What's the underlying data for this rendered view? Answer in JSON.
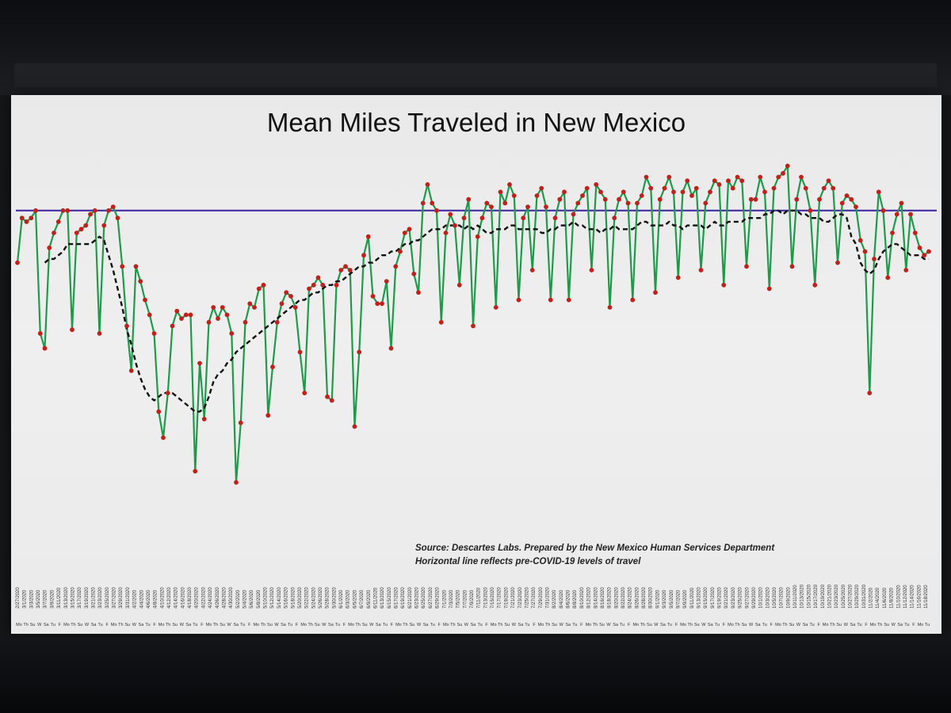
{
  "chart_data": {
    "type": "line",
    "title": "Mean Miles Traveled in New Mexico",
    "x_labels": [
      "2/27/2020",
      "3/1/2020",
      "3/3/2020",
      "3/5/2020",
      "3/7/2020",
      "3/9/2020",
      "3/11/2020",
      "3/13/2020",
      "3/15/2020",
      "3/17/2020",
      "3/19/2020",
      "3/21/2020",
      "3/23/2020",
      "3/25/2020",
      "3/27/2020",
      "3/29/2020",
      "3/31/2020",
      "4/2/2020",
      "4/4/2020",
      "4/6/2020",
      "4/8/2020",
      "4/10/2020",
      "4/12/2020",
      "4/14/2020",
      "4/16/2020",
      "4/18/2020",
      "4/20/2020",
      "4/22/2020",
      "4/24/2020",
      "4/26/2020",
      "4/28/2020",
      "4/30/2020",
      "5/2/2020",
      "5/4/2020",
      "5/6/2020",
      "5/8/2020",
      "5/10/2020",
      "5/12/2020",
      "5/14/2020",
      "5/16/2020",
      "5/18/2020",
      "5/20/2020",
      "5/22/2020",
      "5/24/2020",
      "5/26/2020",
      "5/28/2020",
      "5/30/2020",
      "6/1/2020",
      "6/3/2020",
      "6/5/2020",
      "6/7/2020",
      "6/9/2020",
      "6/11/2020",
      "6/13/2020",
      "6/15/2020",
      "6/17/2020",
      "6/19/2020",
      "6/21/2020",
      "6/23/2020",
      "6/25/2020",
      "6/27/2020",
      "6/29/2020",
      "7/1/2020",
      "7/3/2020",
      "7/5/2020",
      "7/7/2020",
      "7/9/2020",
      "7/11/2020",
      "7/13/2020",
      "7/15/2020",
      "7/17/2020",
      "7/19/2020",
      "7/21/2020",
      "7/23/2020",
      "7/25/2020",
      "7/27/2020",
      "7/29/2020",
      "7/31/2020",
      "8/2/2020",
      "8/4/2020",
      "8/6/2020",
      "8/8/2020",
      "8/10/2020",
      "8/12/2020",
      "8/14/2020",
      "8/16/2020",
      "8/18/2020",
      "8/20/2020",
      "8/22/2020",
      "8/24/2020",
      "8/26/2020",
      "8/28/2020",
      "8/30/2020",
      "9/1/2020",
      "9/3/2020",
      "9/5/2020",
      "9/7/2020",
      "9/9/2020",
      "9/11/2020",
      "9/13/2020",
      "9/15/2020",
      "9/17/2020",
      "9/19/2020",
      "9/21/2020",
      "9/23/2020",
      "9/25/2020",
      "9/27/2020",
      "9/29/2020",
      "10/1/2020",
      "10/3/2020",
      "10/5/2020",
      "10/7/2020",
      "10/9/2020",
      "10/11/2020",
      "10/13/2020",
      "10/15/2020",
      "10/17/2020",
      "10/19/2020",
      "10/21/2020",
      "10/23/2020",
      "10/25/2020",
      "10/27/2020",
      "10/29/2020",
      "10/31/2020",
      "11/2/2020",
      "11/4/2020",
      "11/6/2020",
      "11/8/2020",
      "11/10/2020",
      "11/12/2020",
      "11/14/2020",
      "11/16/2020",
      "11/18/2020"
    ],
    "weekday_labels": [
      "Mo",
      "Th",
      "Su",
      "W",
      "Sa",
      "Tu",
      "F",
      "Mo",
      "Th",
      "Su",
      "W",
      "Sa",
      "Tu",
      "F",
      "Mo",
      "Th",
      "Su",
      "W",
      "Sa",
      "Tu",
      "F",
      "Mo",
      "Th",
      "Su",
      "W",
      "Sa",
      "Tu",
      "F",
      "Mo",
      "Th",
      "Su",
      "W",
      "Sa",
      "Tu",
      "F",
      "Mo",
      "Th",
      "Su",
      "W",
      "Sa",
      "Tu",
      "F",
      "Mo",
      "Th",
      "Su",
      "W",
      "Sa",
      "Tu",
      "F",
      "Mo",
      "Th",
      "Su",
      "W",
      "Sa",
      "Tu",
      "F",
      "Mo",
      "Th",
      "Su",
      "W",
      "Sa",
      "Tu",
      "F",
      "Mo",
      "Th",
      "Su",
      "W",
      "Sa",
      "Tu",
      "F",
      "Mo",
      "Th",
      "Su",
      "W",
      "Sa",
      "Tu",
      "F",
      "Mo",
      "Th",
      "Su",
      "W",
      "Sa",
      "Tu",
      "F",
      "Mo",
      "Th",
      "Su",
      "W",
      "Sa",
      "Tu",
      "F",
      "Mo",
      "Th",
      "Su",
      "W",
      "Sa",
      "Tu",
      "F",
      "Mo",
      "Th",
      "Su",
      "W",
      "Sa",
      "Tu",
      "F",
      "Mo",
      "Th",
      "Su",
      "W",
      "Sa",
      "Tu",
      "F",
      "Mo",
      "Th",
      "Su",
      "W",
      "Sa",
      "Tu",
      "F",
      "Mo",
      "Th",
      "Su",
      "W",
      "Sa",
      "Tu",
      "F",
      "Mo",
      "Th",
      "Su",
      "W",
      "Sa",
      "Tu",
      "F",
      "Mo",
      "Tu"
    ],
    "ylim": [
      0,
      100
    ],
    "baseline_value": 86,
    "series": [
      {
        "values": [
          72,
          84,
          83,
          84,
          86,
          53,
          49,
          76,
          80,
          83,
          86,
          86,
          54,
          80,
          81,
          82,
          85,
          86,
          53,
          82,
          86,
          87,
          84,
          71,
          55,
          43,
          71,
          67,
          62,
          58,
          53,
          32,
          25,
          37,
          55,
          59,
          57,
          58,
          58,
          16,
          45,
          30,
          56,
          60,
          57,
          60,
          58,
          53,
          13,
          29,
          56,
          61,
          60,
          65,
          66,
          31,
          44,
          56,
          61,
          64,
          63,
          60,
          48,
          37,
          65,
          66,
          68,
          66,
          36,
          35,
          66,
          70,
          71,
          70,
          28,
          48,
          74,
          79,
          63,
          61,
          61,
          67,
          49,
          71,
          75,
          80,
          81,
          69,
          64,
          88,
          93,
          88,
          86,
          56,
          80,
          85,
          82,
          66,
          84,
          89,
          55,
          79,
          84,
          88,
          87,
          60,
          91,
          88,
          93,
          90,
          62,
          84,
          87,
          70,
          90,
          92,
          87,
          62,
          84,
          89,
          91,
          62,
          85,
          88,
          90,
          92,
          70,
          93,
          91,
          89,
          60,
          84,
          89,
          91,
          88,
          62,
          88,
          90,
          95,
          92,
          64,
          89,
          92,
          95,
          91,
          68,
          91,
          94,
          90,
          92,
          70,
          88,
          91,
          94,
          93,
          66,
          94,
          92,
          95,
          94,
          71,
          89,
          89,
          95,
          91,
          65,
          92,
          95,
          96,
          98,
          71,
          89,
          95,
          92,
          86,
          66,
          89,
          92,
          94,
          92,
          72,
          88,
          90,
          89,
          87,
          78,
          75,
          37,
          73,
          91,
          86,
          68,
          80,
          85,
          88,
          70,
          85,
          80,
          76,
          74,
          75
        ]
      },
      {
        "values": [
          null,
          null,
          null,
          null,
          null,
          null,
          72,
          73,
          73,
          74,
          75,
          77,
          77,
          77,
          77,
          77,
          77,
          78,
          79,
          78,
          74,
          70,
          65,
          60,
          54,
          50,
          45,
          41,
          38,
          36,
          35,
          36,
          37,
          37,
          37,
          36,
          35,
          34,
          33,
          32,
          32,
          33,
          36,
          40,
          42,
          43,
          45,
          46,
          48,
          49,
          50,
          51,
          52,
          53,
          54,
          55,
          56,
          57,
          58,
          59,
          60,
          61,
          62,
          62,
          63,
          64,
          64,
          65,
          66,
          66,
          67,
          67,
          68,
          69,
          70,
          71,
          71,
          72,
          72,
          73,
          74,
          74,
          75,
          75,
          76,
          77,
          77,
          78,
          78,
          79,
          80,
          81,
          81,
          81,
          82,
          82,
          82,
          82,
          81,
          82,
          81,
          82,
          81,
          80,
          80,
          81,
          81,
          81,
          82,
          82,
          81,
          81,
          81,
          81,
          81,
          80,
          80,
          81,
          81,
          82,
          82,
          82,
          83,
          82,
          82,
          81,
          81,
          81,
          80,
          81,
          81,
          82,
          81,
          81,
          81,
          81,
          82,
          83,
          83,
          82,
          82,
          82,
          82,
          83,
          82,
          82,
          81,
          82,
          82,
          82,
          82,
          81,
          82,
          83,
          82,
          82,
          83,
          83,
          83,
          83,
          84,
          84,
          84,
          84,
          85,
          85,
          86,
          86,
          85,
          86,
          86,
          86,
          85,
          85,
          84,
          84,
          84,
          83,
          83,
          84,
          85,
          85,
          84,
          79,
          77,
          72,
          70,
          69,
          70,
          73,
          75,
          76,
          77,
          77,
          76,
          75,
          74,
          74,
          74,
          73,
          73
        ]
      }
    ],
    "annotations": [
      "Source: Descartes Labs.  Prepared by the New Mexico Human Services Department",
      "Horizontal line reflects pre-COVID-19 levels of travel"
    ]
  },
  "colors": {
    "daily_line": "#1f9a4a",
    "daily_marker": "#c0221b",
    "moving_average": "#111111",
    "baseline": "#3a1fa0"
  }
}
